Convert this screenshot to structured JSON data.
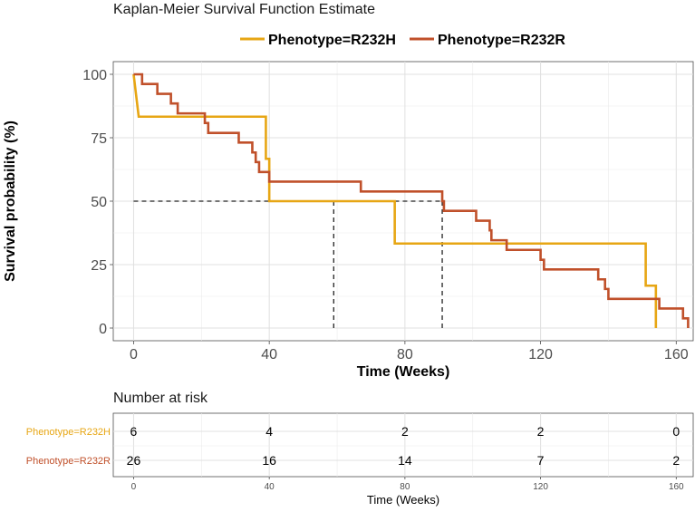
{
  "chart_data": [
    {
      "type": "line",
      "step": true,
      "title": "Kaplan-Meier Survival Function Estimate",
      "xlabel": "Time (Weeks)",
      "ylabel": "Survival probability (%)",
      "xlim": [
        -6,
        165
      ],
      "ylim": [
        -5,
        105
      ],
      "x_ticks": [
        0,
        40,
        80,
        120,
        160
      ],
      "y_ticks": [
        0,
        25,
        50,
        75,
        100
      ],
      "grid": true,
      "legend_position": "top",
      "median_survival": {
        "y": 50,
        "x": [
          59,
          91
        ]
      },
      "series": [
        {
          "name": "Phenotype=R232H",
          "color": "#E7A614",
          "points": [
            [
              0,
              100
            ],
            [
              1.5,
              83.3
            ],
            [
              39,
              83.3
            ],
            [
              39,
              66.7
            ],
            [
              40,
              66.7
            ],
            [
              40,
              50
            ],
            [
              77,
              50
            ],
            [
              77,
              33.3
            ],
            [
              151,
              33.3
            ],
            [
              151,
              16.7
            ],
            [
              154,
              16.7
            ],
            [
              154,
              0
            ]
          ]
        },
        {
          "name": "Phenotype=R232R",
          "color": "#C0502A",
          "points": [
            [
              0,
              100
            ],
            [
              2.5,
              100
            ],
            [
              2.5,
              96.2
            ],
            [
              7,
              96.2
            ],
            [
              7,
              92.3
            ],
            [
              11,
              92.3
            ],
            [
              11,
              88.5
            ],
            [
              13,
              88.5
            ],
            [
              13,
              84.6
            ],
            [
              21,
              84.6
            ],
            [
              21,
              80.8
            ],
            [
              22,
              80.8
            ],
            [
              22,
              76.9
            ],
            [
              31,
              76.9
            ],
            [
              31,
              73.1
            ],
            [
              35,
              73.1
            ],
            [
              35,
              69.2
            ],
            [
              36,
              69.2
            ],
            [
              36,
              65.4
            ],
            [
              37,
              65.4
            ],
            [
              37,
              61.5
            ],
            [
              40,
              61.5
            ],
            [
              40,
              57.7
            ],
            [
              67,
              57.7
            ],
            [
              67,
              53.8
            ],
            [
              91,
              53.8
            ],
            [
              91,
              50
            ],
            [
              91.5,
              50
            ],
            [
              91.5,
              46.2
            ],
            [
              101,
              46.2
            ],
            [
              101,
              42.3
            ],
            [
              105,
              42.3
            ],
            [
              105,
              38.5
            ],
            [
              105.5,
              38.5
            ],
            [
              105.5,
              34.6
            ],
            [
              110,
              34.6
            ],
            [
              110,
              30.8
            ],
            [
              120,
              30.8
            ],
            [
              120,
              26.9
            ],
            [
              121,
              26.9
            ],
            [
              121,
              23.1
            ],
            [
              137,
              23.1
            ],
            [
              137,
              19.2
            ],
            [
              139,
              19.2
            ],
            [
              139,
              15.4
            ],
            [
              140,
              15.4
            ],
            [
              140,
              11.5
            ],
            [
              155,
              11.5
            ],
            [
              155,
              7.7
            ],
            [
              162,
              7.7
            ],
            [
              162,
              3.8
            ],
            [
              163.5,
              3.8
            ],
            [
              163.5,
              0
            ]
          ]
        }
      ]
    },
    {
      "type": "table",
      "title": "Number at risk",
      "xlabel": "Time (Weeks)",
      "x_ticks": [
        0,
        40,
        80,
        120,
        160
      ],
      "rows": [
        {
          "label": "Phenotype=R232H",
          "color": "#E7A614",
          "values": [
            6,
            4,
            2,
            2,
            0
          ]
        },
        {
          "label": "Phenotype=R232R",
          "color": "#C0502A",
          "values": [
            26,
            16,
            14,
            7,
            2
          ]
        }
      ]
    }
  ]
}
